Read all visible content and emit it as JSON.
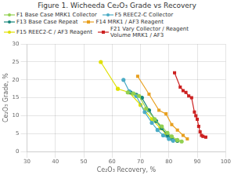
{
  "chart_data": {
    "type": "line",
    "title": "Figure 1. Wicheeda Ce₂O₃ Grade vs Recovery",
    "xlabel": "Ce₂O₃ Recovery, %",
    "ylabel": "Ce₂O₃ Grade, %",
    "xlim": [
      30,
      100
    ],
    "ylim": [
      0,
      30
    ],
    "xticks": [
      30,
      40,
      50,
      60,
      70,
      80,
      90,
      100
    ],
    "yticks": [
      0,
      5,
      10,
      15,
      20,
      25,
      30
    ],
    "grid": true,
    "legend": "upper left",
    "series": [
      {
        "name": "F1 Base Case MRK1 Collector",
        "color": "#92d050",
        "marker": "circle",
        "x": [
          65.5,
          67.5,
          69.5,
          72,
          75,
          77.5,
          79.5,
          81,
          83,
          84.5
        ],
        "values": [
          16.5,
          16.2,
          15.5,
          12,
          9,
          7,
          5.2,
          4.2,
          3.2,
          2.8
        ]
      },
      {
        "name": "F5 REEC2-C Collector",
        "color": "#4bacc6",
        "marker": "circle",
        "x": [
          64,
          66,
          68.5,
          71.5,
          74,
          76,
          78,
          80,
          81.5
        ],
        "values": [
          20,
          16.8,
          15.5,
          11,
          8,
          6,
          4.5,
          3.5,
          3.0
        ]
      },
      {
        "name": "F13 Base Case Repeat",
        "color": "#17857a",
        "marker": "circle",
        "x": [
          66.5,
          68.5,
          70.5,
          73,
          75.5,
          77.5,
          79.5,
          81,
          83
        ],
        "values": [
          16.5,
          15.8,
          15,
          11.5,
          8.5,
          6.5,
          4.5,
          3.5,
          3.0
        ]
      },
      {
        "name": "F14 MRK1 / AF3 Reagent",
        "color": "#e8a020",
        "marker": "square",
        "x": [
          69,
          73,
          76.5,
          79,
          81,
          83,
          85,
          86.5
        ],
        "values": [
          21,
          16,
          11.5,
          10.5,
          7.5,
          6,
          4.5,
          3.5
        ]
      },
      {
        "name": "F15 REEC2-C / AF3 Reagent",
        "color": "#e0e000",
        "marker": "circle",
        "x": [
          56,
          62,
          66,
          70,
          74,
          77,
          79,
          81,
          83
        ],
        "values": [
          25,
          17.5,
          16.5,
          13,
          9,
          6.5,
          5.0,
          3.8,
          3.0
        ]
      },
      {
        "name": "F21 Vary Collector / Reagent\nVolume MRK1 / AF3",
        "color": "#cc2020",
        "marker": "square",
        "x": [
          82,
          84,
          85,
          86,
          87,
          88,
          89,
          89.5,
          90,
          90.5,
          91,
          91.5,
          92,
          93
        ],
        "values": [
          22,
          18,
          17,
          16.5,
          15.5,
          15,
          11,
          10,
          9,
          7,
          5.5,
          4.5,
          4.2,
          4.0
        ]
      }
    ]
  }
}
